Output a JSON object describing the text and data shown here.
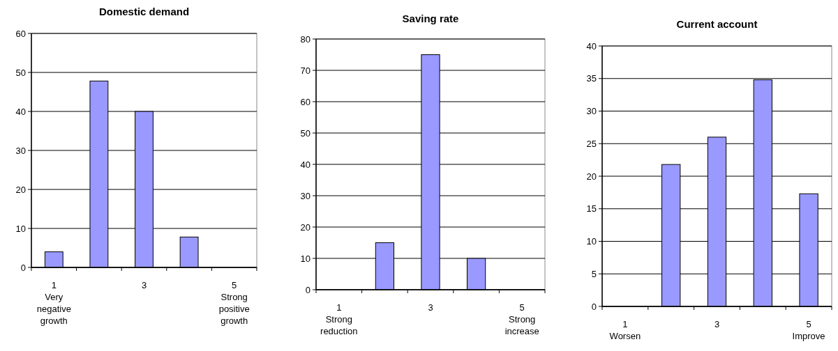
{
  "chart_data": [
    {
      "type": "bar",
      "title": "Domestic demand",
      "categories": [
        "1\nVery\nnegative\ngrowth",
        null,
        "3",
        null,
        "5\nStrong\npositive\ngrowth"
      ],
      "values": [
        4,
        47.8,
        40,
        7.8,
        0
      ],
      "color": "#9999ff",
      "ylim": [
        0,
        60
      ],
      "yticks": [
        0,
        10,
        20,
        30,
        40,
        50,
        60
      ],
      "grid": "y"
    },
    {
      "type": "bar",
      "title": "Saving rate",
      "categories": [
        "1\nStrong\nreduction",
        null,
        "3",
        null,
        "5\nStrong\nincrease"
      ],
      "values": [
        0,
        15,
        75,
        10,
        0
      ],
      "color": "#9999ff",
      "ylim": [
        0,
        80
      ],
      "yticks": [
        0,
        10,
        20,
        30,
        40,
        50,
        60,
        70,
        80
      ],
      "grid": "y"
    },
    {
      "type": "bar",
      "title": "Current account",
      "categories": [
        "1\nWorsen",
        null,
        "3",
        null,
        "5\nImprove"
      ],
      "values": [
        0,
        21.8,
        26,
        34.8,
        17.3
      ],
      "color": "#9999ff",
      "ylim": [
        0,
        40
      ],
      "yticks": [
        0,
        5,
        10,
        15,
        20,
        25,
        30,
        35,
        40
      ],
      "grid": "y"
    }
  ]
}
